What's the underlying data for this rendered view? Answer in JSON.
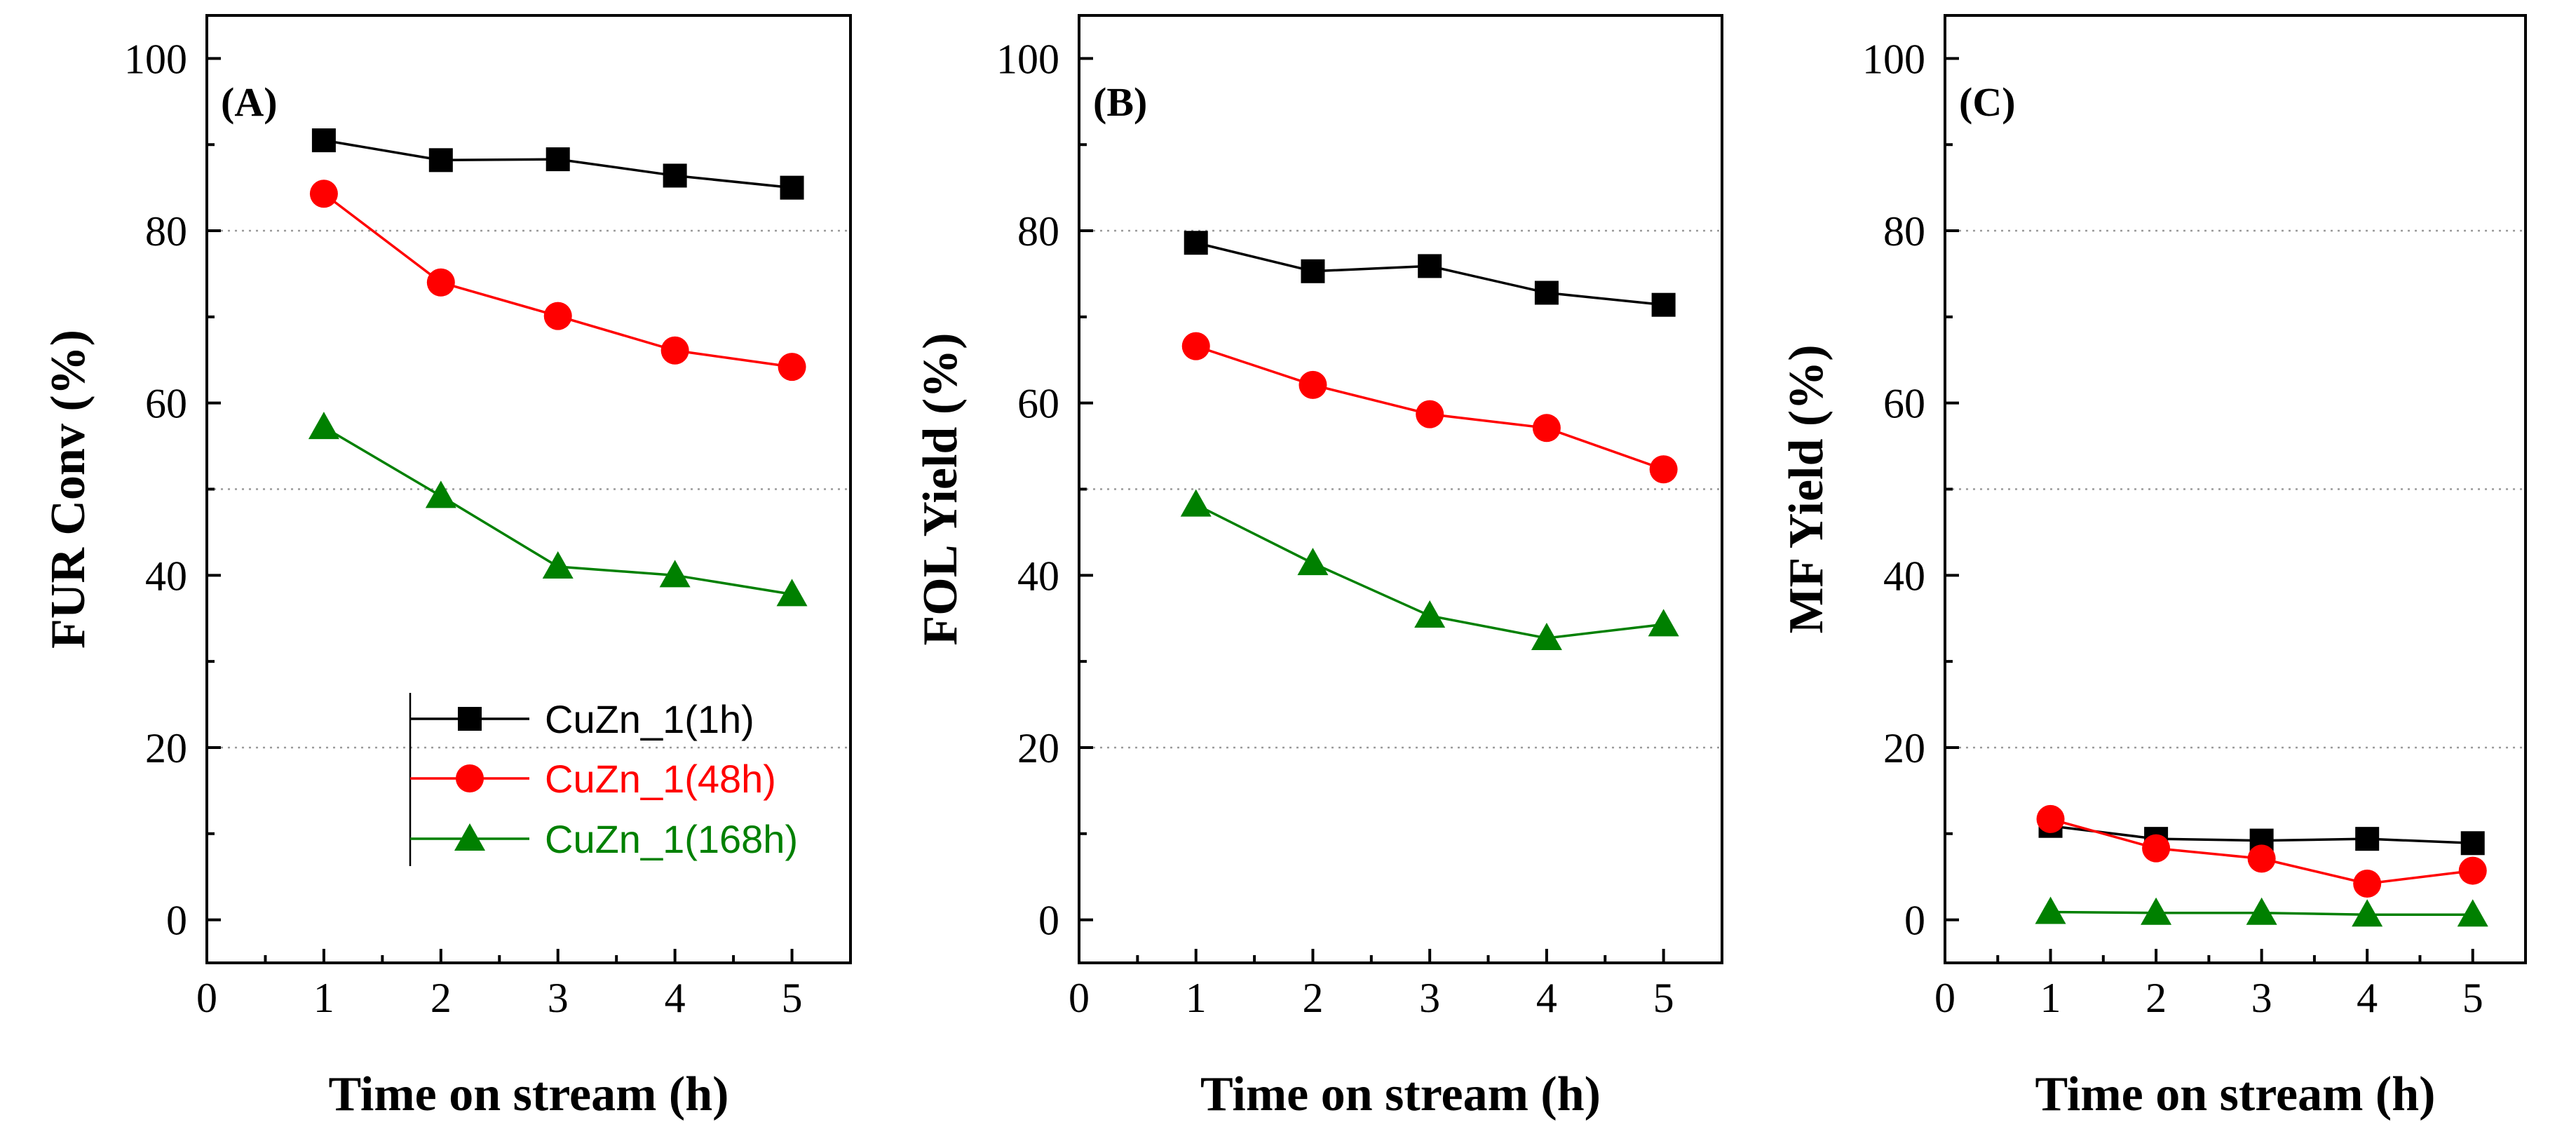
{
  "chart_data": [
    {
      "type": "line",
      "panel_label": "(A)",
      "xlabel": "Time on stream (h)",
      "ylabel": "FUR Conv (%)",
      "xlim": [
        0,
        5.5
      ],
      "ylim": [
        -5,
        105
      ],
      "x_ticks": [
        0,
        1,
        2,
        3,
        4,
        5
      ],
      "y_ticks": [
        0,
        20,
        40,
        60,
        80,
        100
      ],
      "grid_y": [
        20,
        50,
        80
      ],
      "x": [
        1,
        2,
        3,
        4,
        5
      ],
      "legend": {
        "placement": "lower-left"
      },
      "series": [
        {
          "name": "CuZn_1(1h)",
          "color": "#000000",
          "marker": "square",
          "values": [
            90.5,
            88.2,
            88.3,
            86.4,
            85.0
          ]
        },
        {
          "name": "CuZn_1(48h)",
          "color": "#ff0000",
          "marker": "circle",
          "values": [
            84.3,
            74.0,
            70.1,
            66.1,
            64.2
          ]
        },
        {
          "name": "CuZn_1(168h)",
          "color": "#008000",
          "marker": "triangle",
          "values": [
            57.2,
            49.2,
            41.0,
            40.0,
            37.8
          ]
        }
      ]
    },
    {
      "type": "line",
      "panel_label": "(B)",
      "xlabel": "Time on stream (h)",
      "ylabel": "FOL Yield (%)",
      "xlim": [
        0,
        5.5
      ],
      "ylim": [
        -5,
        105
      ],
      "x_ticks": [
        0,
        1,
        2,
        3,
        4,
        5
      ],
      "y_ticks": [
        0,
        20,
        40,
        60,
        80,
        100
      ],
      "grid_y": [
        20,
        50,
        80
      ],
      "x": [
        1,
        2,
        3,
        4,
        5
      ],
      "series": [
        {
          "name": "CuZn_1(1h)",
          "color": "#000000",
          "marker": "square",
          "values": [
            78.6,
            75.3,
            75.9,
            72.8,
            71.4
          ]
        },
        {
          "name": "CuZn_1(48h)",
          "color": "#ff0000",
          "marker": "circle",
          "values": [
            66.6,
            62.1,
            58.7,
            57.1,
            52.3
          ]
        },
        {
          "name": "CuZn_1(168h)",
          "color": "#008000",
          "marker": "triangle",
          "values": [
            48.2,
            41.4,
            35.3,
            32.7,
            34.3
          ]
        }
      ]
    },
    {
      "type": "line",
      "panel_label": "(C)",
      "xlabel": "Time on stream (h)",
      "ylabel": "MF Yield (%)",
      "xlim": [
        0,
        5.5
      ],
      "ylim": [
        -5,
        105
      ],
      "x_ticks": [
        0,
        1,
        2,
        3,
        4,
        5
      ],
      "y_ticks": [
        0,
        20,
        40,
        60,
        80,
        100
      ],
      "grid_y": [
        20,
        50,
        80
      ],
      "x": [
        1,
        2,
        3,
        4,
        5
      ],
      "series": [
        {
          "name": "CuZn_1(1h)",
          "color": "#000000",
          "marker": "square",
          "values": [
            10.9,
            9.4,
            9.2,
            9.4,
            8.9
          ]
        },
        {
          "name": "CuZn_1(48h)",
          "color": "#ff0000",
          "marker": "circle",
          "values": [
            11.7,
            8.3,
            7.1,
            4.2,
            5.7
          ]
        },
        {
          "name": "CuZn_1(168h)",
          "color": "#008000",
          "marker": "triangle",
          "values": [
            0.9,
            0.8,
            0.8,
            0.6,
            0.6
          ]
        }
      ]
    }
  ]
}
